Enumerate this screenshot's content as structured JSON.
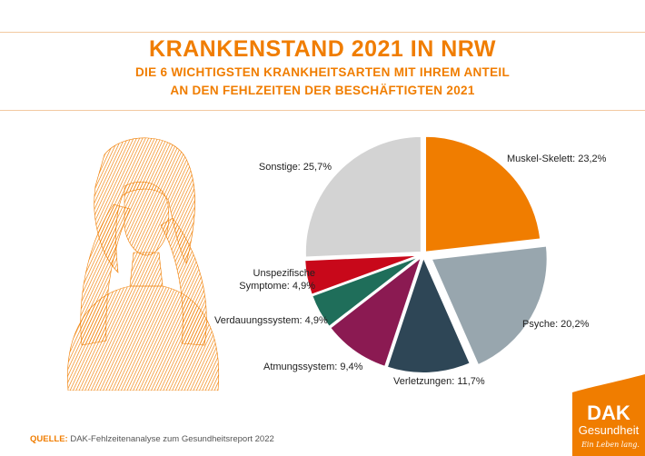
{
  "header": {
    "title": "KRANKENSTAND 2021 IN NRW",
    "subtitle_line1": "DIE 6 WICHTIGSTEN KRANKHEITSARTEN MIT IHREM ANTEIL",
    "subtitle_line2": "AN DEN FEHLZEITEN DER BESCHÄFTIGTEN 2021"
  },
  "chart_data": {
    "type": "pie",
    "unit": "%",
    "slices": [
      {
        "label": "Muskel-Skelett: 23,2%",
        "name": "Muskel-Skelett",
        "value": 23.2,
        "color": "#f07d00",
        "exploded": false
      },
      {
        "label": "Psyche: 20,2%",
        "name": "Psyche",
        "value": 20.2,
        "color": "#98a6ae",
        "exploded": true
      },
      {
        "label": "Verletzungen: 11,7%",
        "name": "Verletzungen",
        "value": 11.7,
        "color": "#2e4656",
        "exploded": false
      },
      {
        "label": "Atmungssystem: 9,4%",
        "name": "Atmungssystem",
        "value": 9.4,
        "color": "#8b1a52",
        "exploded": false
      },
      {
        "label": "Verdauungssystem: 4,9%",
        "name": "Verdauungssystem",
        "value": 4.9,
        "color": "#1f6e5a",
        "exploded": false
      },
      {
        "label_line1": "Unspezifische",
        "label_line2": "Symptome: 4,9%",
        "name": "Unspezifische Symptome",
        "value": 4.9,
        "color": "#c8081a",
        "exploded": false
      },
      {
        "label": "Sonstige: 25,7%",
        "name": "Sonstige",
        "value": 25.7,
        "color": "#d3d3d3",
        "exploded": false
      }
    ]
  },
  "source": {
    "label": "QUELLE:",
    "text": "DAK-Fehlzeitenanalyse zum Gesundheitsreport 2022"
  },
  "logo": {
    "brand": "DAK",
    "line2": "Gesundheit",
    "tagline": "Ein Leben lang.",
    "color": "#f07d00"
  }
}
